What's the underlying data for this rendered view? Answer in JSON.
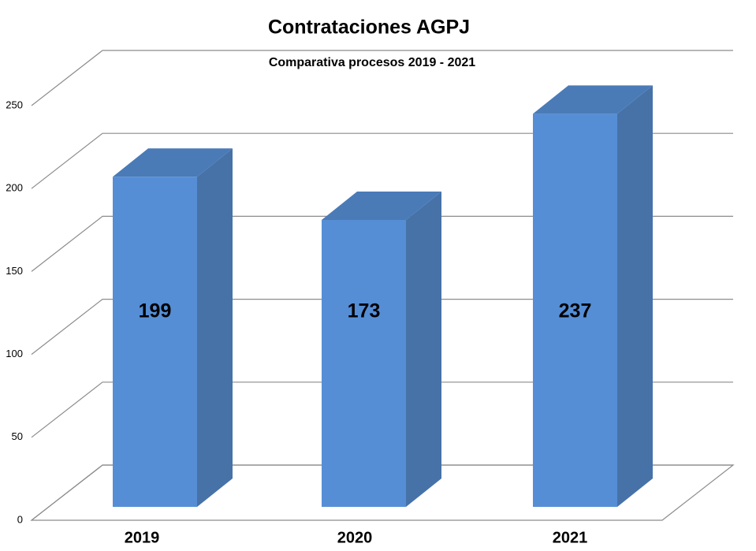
{
  "chart_data": {
    "type": "bar3d",
    "title": "Contrataciones  AGPJ",
    "subtitle": "Comparativa procesos 2019 - 2021",
    "categories": [
      "2019",
      "2020",
      "2021"
    ],
    "values": [
      199,
      173,
      237
    ],
    "color": "#558ed5",
    "ylim": [
      0,
      250
    ],
    "yticks": [
      0,
      50,
      100,
      150,
      200,
      250
    ],
    "grid": true
  }
}
